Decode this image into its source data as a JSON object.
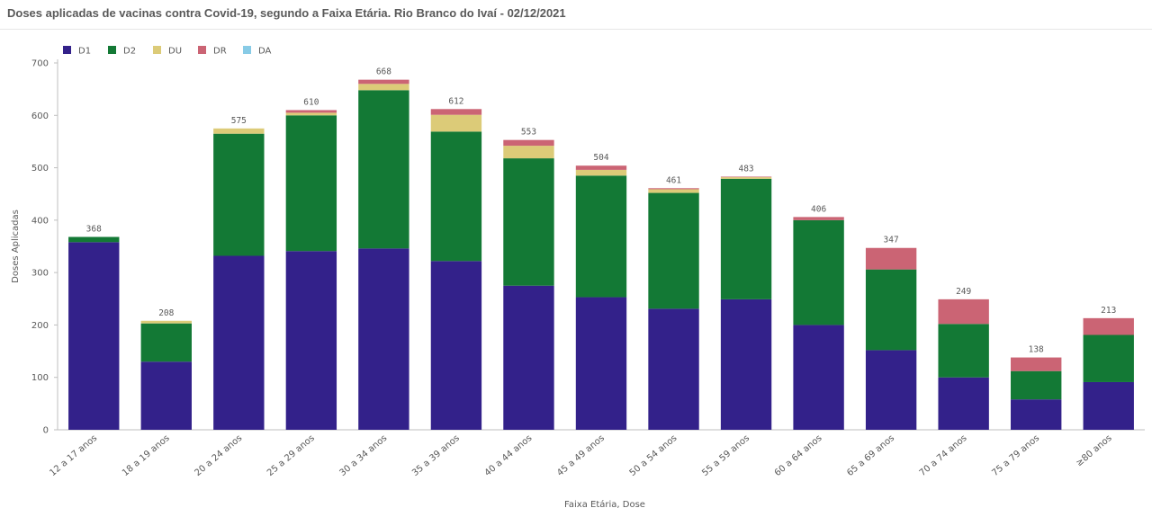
{
  "header": {
    "title": "Doses aplicadas de vacinas contra Covid-19, segundo a Faixa Etária.  Rio Branco do Ivaí - 02/12/2021"
  },
  "chart_data": {
    "type": "bar",
    "stacked": true,
    "categories": [
      "12 a 17 anos",
      "18 a 19 anos",
      "20 a 24 anos",
      "25 a 29 anos",
      "30 a 34 anos",
      "35 a 39 anos",
      "40 a 44 anos",
      "45 a 49 anos",
      "50 a 54 anos",
      "55 a 59 anos",
      "60 a 64 anos",
      "65 a 69 anos",
      "70 a 74 anos",
      "75 a 79 anos",
      "≥80 anos"
    ],
    "series": [
      {
        "name": "D1",
        "color": "#33218a",
        "values": [
          358,
          130,
          332,
          341,
          346,
          322,
          275,
          253,
          231,
          249,
          200,
          152,
          100,
          58,
          91
        ]
      },
      {
        "name": "D2",
        "color": "#137935",
        "values": [
          10,
          73,
          233,
          259,
          302,
          247,
          243,
          232,
          221,
          230,
          200,
          154,
          102,
          54,
          90
        ]
      },
      {
        "name": "DU",
        "color": "#dccb78",
        "values": [
          0,
          5,
          10,
          5,
          12,
          32,
          24,
          11,
          7,
          3,
          0,
          0,
          0,
          0,
          0
        ]
      },
      {
        "name": "DR",
        "color": "#cb6474",
        "values": [
          0,
          0,
          0,
          5,
          8,
          11,
          11,
          8,
          2,
          1,
          6,
          41,
          47,
          26,
          32
        ]
      },
      {
        "name": "DA",
        "color": "#88cbe6",
        "values": [
          0,
          0,
          0,
          0,
          0,
          0,
          0,
          0,
          0,
          0,
          0,
          0,
          0,
          0,
          0
        ]
      }
    ],
    "totals": [
      368,
      208,
      575,
      610,
      668,
      612,
      553,
      504,
      461,
      483,
      406,
      347,
      249,
      138,
      213
    ],
    "ylabel": "Doses Aplicadas",
    "xlabel": "Faixa Etária, Dose",
    "ylim": [
      0,
      700
    ],
    "yticks": [
      0,
      100,
      200,
      300,
      400,
      500,
      600,
      700
    ],
    "grid": false,
    "legend_position": "top-left"
  }
}
